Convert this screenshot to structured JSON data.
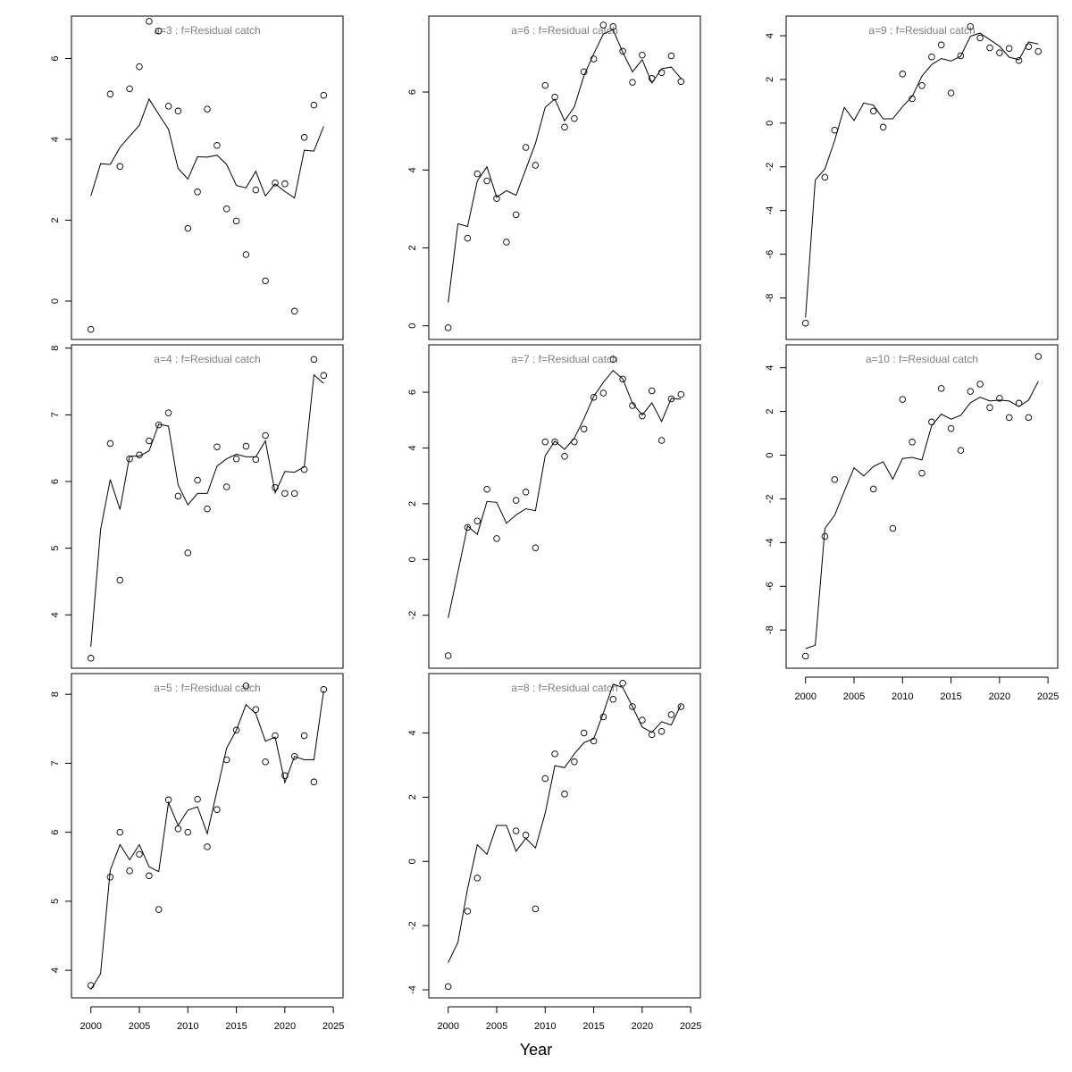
{
  "chart_data": {
    "type": "line",
    "xlabel": "Year",
    "x": [
      2000,
      2001,
      2002,
      2003,
      2004,
      2005,
      2006,
      2007,
      2008,
      2009,
      2010,
      2011,
      2012,
      2013,
      2014,
      2015,
      2016,
      2017,
      2018,
      2019,
      2020,
      2021,
      2022,
      2023,
      2024
    ],
    "x_ticks": [
      2000,
      2005,
      2010,
      2015,
      2020,
      2025
    ],
    "x_lim": [
      1998,
      2026
    ],
    "style": "points = observed, line = fitted",
    "panels": [
      {
        "title": "a=3  :  f=Residual catch",
        "ylim": [
          -0.95,
          7.05
        ],
        "yticks": [
          0,
          2,
          4,
          6
        ],
        "fitted": [
          2.6,
          3.4,
          3.38,
          3.8,
          4.08,
          4.35,
          5.0,
          4.62,
          4.25,
          3.28,
          3.02,
          3.57,
          3.56,
          3.61,
          3.38,
          2.86,
          2.8,
          3.21,
          2.6,
          2.9,
          2.71,
          2.55,
          3.73,
          3.71,
          4.32
        ],
        "observed": [
          -0.7,
          null,
          5.12,
          3.33,
          5.25,
          5.8,
          6.92,
          6.68,
          4.82,
          4.7,
          1.8,
          2.7,
          4.75,
          3.85,
          2.28,
          1.98,
          1.15,
          2.75,
          0.5,
          2.92,
          2.9,
          -0.25,
          4.05,
          4.85,
          5.09
        ]
      },
      {
        "title": "a=6  :  f=Residual catch",
        "ylim": [
          -0.35,
          7.95
        ],
        "yticks": [
          0,
          2,
          4,
          6
        ],
        "fitted": [
          0.6,
          2.62,
          2.55,
          3.72,
          4.08,
          3.3,
          3.47,
          3.35,
          4.02,
          4.68,
          5.61,
          5.82,
          5.26,
          5.62,
          6.42,
          6.98,
          7.49,
          7.6,
          7.02,
          6.52,
          6.83,
          6.23,
          6.6,
          6.64,
          6.35
        ],
        "observed": [
          -0.05,
          null,
          2.25,
          3.9,
          3.72,
          3.27,
          2.15,
          2.85,
          4.58,
          4.12,
          6.17,
          5.87,
          5.1,
          5.32,
          6.52,
          6.85,
          7.72,
          7.68,
          7.05,
          6.25,
          6.95,
          6.35,
          6.5,
          6.93,
          6.27
        ]
      },
      {
        "title": "a=9  :  f=Residual catch",
        "ylim": [
          -9.9,
          4.9
        ],
        "yticks": [
          -8,
          -6,
          -4,
          -2,
          0,
          2,
          4
        ],
        "fitted": [
          -8.9,
          -2.6,
          -2.1,
          -0.8,
          0.72,
          0.12,
          0.92,
          0.82,
          0.2,
          0.2,
          0.76,
          1.22,
          2.15,
          2.68,
          2.96,
          2.84,
          3.06,
          3.98,
          4.12,
          3.82,
          3.52,
          3.02,
          2.9,
          3.72,
          3.62
        ],
        "observed": [
          -9.15,
          null,
          -2.48,
          -0.32,
          null,
          null,
          null,
          0.55,
          -0.18,
          null,
          2.25,
          1.12,
          1.72,
          3.03,
          3.58,
          1.38,
          3.08,
          4.42,
          3.9,
          3.45,
          3.22,
          3.42,
          2.87,
          3.5,
          3.28
        ]
      },
      {
        "title": "a=4  :  f=Residual catch",
        "ylim": [
          3.2,
          8.05
        ],
        "yticks": [
          4,
          5,
          6,
          7,
          8
        ],
        "fitted": [
          3.52,
          5.28,
          6.03,
          5.58,
          6.38,
          6.38,
          6.46,
          6.86,
          6.83,
          5.95,
          5.65,
          5.82,
          5.82,
          6.23,
          6.34,
          6.41,
          6.37,
          6.37,
          6.61,
          5.83,
          6.15,
          6.14,
          6.22,
          7.6,
          7.47
        ],
        "observed": [
          3.35,
          null,
          6.57,
          4.52,
          6.34,
          6.4,
          6.61,
          6.85,
          7.03,
          5.78,
          4.93,
          6.02,
          5.59,
          6.52,
          5.92,
          6.34,
          6.53,
          6.33,
          6.69,
          5.91,
          5.82,
          5.82,
          6.18,
          7.83,
          7.59
        ]
      },
      {
        "title": "a=7  :  f=Residual catch",
        "ylim": [
          -3.9,
          7.7
        ],
        "yticks": [
          -2,
          0,
          2,
          4,
          6
        ],
        "fitted": [
          -2.1,
          -0.45,
          1.2,
          0.9,
          2.08,
          2.05,
          1.3,
          1.6,
          1.82,
          1.75,
          3.72,
          4.25,
          3.95,
          4.35,
          5.05,
          5.85,
          6.35,
          6.78,
          6.48,
          5.6,
          5.18,
          5.62,
          4.95,
          5.78,
          5.75
        ],
        "observed": [
          -3.45,
          null,
          1.15,
          1.38,
          2.52,
          0.75,
          null,
          2.12,
          2.42,
          0.42,
          4.22,
          4.22,
          3.7,
          4.22,
          4.68,
          5.82,
          5.97,
          7.18,
          6.47,
          5.52,
          5.15,
          6.05,
          4.27,
          5.76,
          5.92
        ]
      },
      {
        "title": "a=10  :  f=Residual catch",
        "ylim": [
          -9.75,
          5.05
        ],
        "yticks": [
          -8,
          -6,
          -4,
          -2,
          0,
          2,
          4
        ],
        "fitted": [
          -8.85,
          -8.7,
          -3.35,
          -2.75,
          -1.65,
          -0.58,
          -0.95,
          -0.52,
          -0.3,
          -1.1,
          -0.15,
          -0.1,
          -0.22,
          1.35,
          1.88,
          1.65,
          1.82,
          2.4,
          2.65,
          2.48,
          2.52,
          2.48,
          2.22,
          2.52,
          3.38
        ],
        "observed": [
          -9.2,
          null,
          -3.72,
          -1.12,
          null,
          null,
          null,
          -1.55,
          null,
          -3.35,
          2.55,
          0.6,
          -0.82,
          1.52,
          3.05,
          1.22,
          0.22,
          2.92,
          3.25,
          2.18,
          2.6,
          1.72,
          2.38,
          1.72,
          4.52
        ]
      },
      {
        "title": "a=5  :  f=Residual catch",
        "ylim": [
          3.6,
          8.3
        ],
        "yticks": [
          4,
          5,
          6,
          7,
          8
        ],
        "fitted": [
          3.72,
          3.95,
          5.45,
          5.82,
          5.6,
          5.82,
          5.5,
          5.43,
          6.43,
          6.1,
          6.32,
          6.37,
          5.98,
          6.6,
          7.22,
          7.48,
          7.85,
          7.72,
          7.32,
          7.38,
          6.72,
          7.1,
          7.05,
          7.05,
          8.05
        ],
        "observed": [
          3.78,
          null,
          5.35,
          6.0,
          5.44,
          5.68,
          5.37,
          4.88,
          6.47,
          6.05,
          6.0,
          6.48,
          5.79,
          6.33,
          7.05,
          7.48,
          8.12,
          7.78,
          7.02,
          7.4,
          6.82,
          7.1,
          7.4,
          6.73,
          8.07
        ]
      },
      {
        "title": "a=8  :  f=Residual catch",
        "ylim": [
          -4.25,
          5.85
        ],
        "yticks": [
          -4,
          -2,
          0,
          2,
          4
        ],
        "fitted": [
          -3.15,
          -2.52,
          -0.85,
          0.52,
          0.22,
          1.12,
          1.12,
          0.32,
          0.72,
          0.42,
          1.5,
          2.98,
          2.92,
          3.35,
          3.7,
          3.82,
          4.62,
          5.52,
          5.42,
          4.82,
          4.18,
          4.02,
          4.35,
          4.25,
          4.88
        ],
        "observed": [
          -3.9,
          null,
          -1.55,
          -0.52,
          null,
          null,
          null,
          0.95,
          0.82,
          -1.48,
          2.58,
          3.35,
          2.1,
          3.1,
          4.0,
          3.75,
          4.5,
          5.05,
          5.55,
          4.82,
          4.4,
          3.95,
          4.05,
          4.57,
          4.82
        ]
      }
    ]
  }
}
